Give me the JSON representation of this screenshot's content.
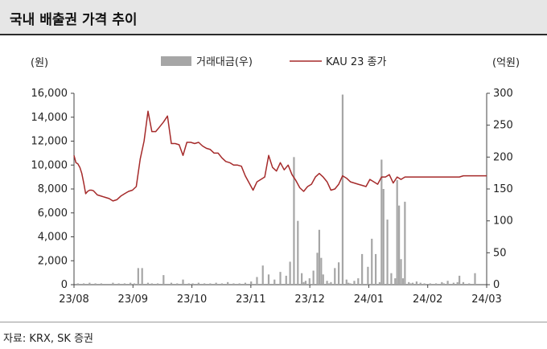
{
  "title": "국내 배출권 가격 추이",
  "source": "자료: KRX, SK 증권",
  "chart_data": {
    "type": "bar+line",
    "title": "국내 배출권 가격 추이",
    "left_axis_unit": "(원)",
    "right_axis_unit": "(억원)",
    "left_ylim": [
      0,
      16000
    ],
    "right_ylim": [
      0,
      300
    ],
    "left_ticks": [
      "0",
      "2,000",
      "4,000",
      "6,000",
      "8,000",
      "10,000",
      "12,000",
      "14,000",
      "16,000"
    ],
    "right_ticks": [
      "0",
      "50",
      "100",
      "150",
      "200",
      "250",
      "300"
    ],
    "x_ticks": [
      "23/08",
      "23/09",
      "23/10",
      "23/11",
      "23/12",
      "24/01",
      "24/02",
      "24/03"
    ],
    "legend": {
      "position": "top-center"
    },
    "series": [
      {
        "name": "거래대금(우)",
        "type": "bar",
        "axis": "right",
        "color": "#a6a6a6",
        "x": [
          2,
          5,
          8,
          11,
          14,
          20,
          23,
          26,
          29,
          31,
          33,
          35,
          38,
          40,
          43,
          46,
          50,
          53,
          56,
          59,
          61,
          64,
          67,
          70,
          73,
          76,
          79,
          82,
          85,
          88,
          91,
          94,
          97,
          100,
          103,
          106,
          109,
          111,
          113,
          115,
          117,
          118,
          119,
          121,
          123,
          125,
          126,
          127,
          128,
          130,
          131,
          132,
          134,
          136,
          138,
          140,
          141,
          142,
          144,
          146,
          148,
          151,
          153,
          155,
          157,
          158,
          159,
          161,
          163,
          165,
          166,
          167,
          168,
          169,
          170,
          172,
          173,
          174,
          176,
          178,
          180,
          183,
          186,
          189,
          190,
          192,
          195,
          197,
          198,
          200,
          203,
          206
        ],
        "values": [
          2,
          2,
          3,
          2,
          2,
          3,
          2,
          2,
          3,
          2,
          26,
          26,
          3,
          2,
          2,
          15,
          3,
          2,
          8,
          2,
          2,
          3,
          2,
          2,
          3,
          2,
          4,
          2,
          2,
          3,
          5,
          12,
          30,
          16,
          8,
          20,
          14,
          36,
          200,
          100,
          18,
          4,
          6,
          10,
          22,
          50,
          86,
          42,
          16,
          6,
          2,
          4,
          26,
          35,
          298,
          8,
          3,
          2,
          6,
          10,
          48,
          28,
          72,
          48,
          4,
          196,
          150,
          102,
          18,
          10,
          164,
          124,
          40,
          10,
          130,
          4,
          2,
          3,
          5,
          3,
          2,
          2,
          2,
          4,
          2,
          6,
          3,
          4,
          14,
          4,
          2,
          18
        ]
      },
      {
        "name": "KAU 23 종가",
        "type": "line",
        "axis": "left",
        "color": "#a52a2a",
        "x": [
          0,
          1,
          2,
          3,
          4,
          5,
          6,
          7,
          8,
          9,
          10,
          12,
          14,
          16,
          18,
          20,
          22,
          24,
          26,
          28,
          30,
          32,
          34,
          36,
          38,
          40,
          42,
          44,
          46,
          48,
          50,
          52,
          54,
          56,
          58,
          60,
          62,
          64,
          66,
          68,
          70,
          72,
          74,
          76,
          78,
          80,
          82,
          84,
          86,
          88,
          90,
          92,
          94,
          96,
          98,
          100,
          102,
          104,
          106,
          108,
          110,
          112,
          114,
          116,
          118,
          120,
          122,
          124,
          126,
          128,
          130,
          132,
          134,
          136,
          138,
          140,
          142,
          144,
          146,
          148,
          150,
          152,
          154,
          156,
          158,
          160,
          162,
          164,
          166,
          168,
          170,
          172,
          174,
          176,
          178,
          180,
          182,
          184,
          186,
          188,
          190,
          192,
          194,
          196,
          198,
          200,
          202,
          204,
          206,
          208,
          210,
          212
        ],
        "values": [
          10800,
          10200,
          10100,
          9800,
          9300,
          8500,
          7600,
          7800,
          7900,
          7900,
          7850,
          7500,
          7400,
          7300,
          7200,
          7000,
          7100,
          7400,
          7600,
          7800,
          7900,
          8200,
          10500,
          12000,
          14500,
          12800,
          12800,
          13200,
          13600,
          14100,
          11800,
          11800,
          11700,
          10800,
          11900,
          11900,
          11800,
          11900,
          11600,
          11400,
          11300,
          11000,
          11000,
          10600,
          10300,
          10200,
          10000,
          10000,
          9900,
          9100,
          8500,
          7900,
          8600,
          8800,
          9000,
          10800,
          9800,
          9500,
          10200,
          9600,
          10000,
          9200,
          8700,
          8100,
          7800,
          8200,
          8400,
          9000,
          9300,
          9000,
          8600,
          7900,
          8000,
          8400,
          9100,
          8900,
          8600,
          8500,
          8400,
          8300,
          8200,
          8800,
          8600,
          8400,
          9000,
          9000,
          9200,
          8500,
          9000,
          8800,
          9000,
          9000,
          9000,
          9000,
          9000,
          9000,
          9000,
          9000,
          9000,
          9000,
          9000,
          9000,
          9000,
          9000,
          9000,
          9100,
          9100,
          9100,
          9100,
          9100,
          9100,
          9100
        ]
      }
    ]
  }
}
